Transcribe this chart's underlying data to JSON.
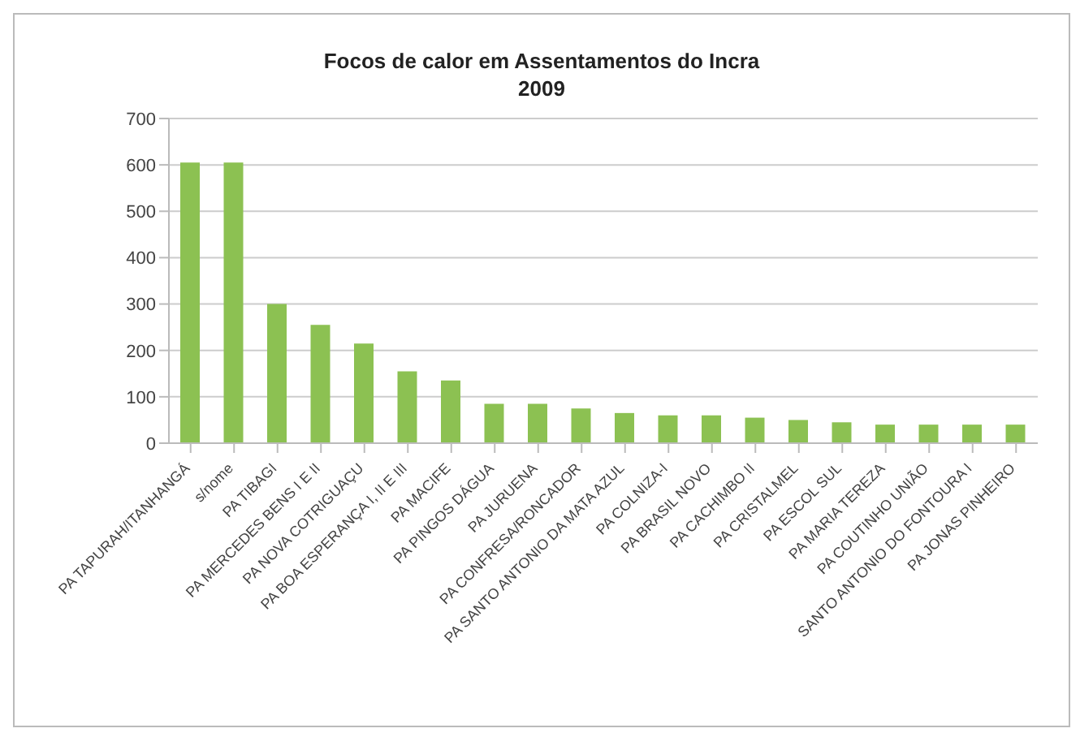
{
  "chart_data": {
    "type": "bar",
    "title": "Focos de calor em Assentamentos do Incra",
    "subtitle": "2009",
    "categories": [
      "PA TAPURAH/ITANHANGÁ",
      "s/nome",
      "PA TIBAGI",
      "PA MERCEDES BENS I E II",
      "PA NOVA COTRIGUAÇU",
      "PA BOA ESPERANÇA I, II E III",
      "PA MACIFE",
      "PA PINGOS DÁGUA",
      "PA JURUENA",
      "PA CONFRESA/RONCADOR",
      "PA SANTO ANTONIO DA MATA AZUL",
      "PA COLNIZA-I",
      "PA BRASIL NOVO",
      "PA CACHIMBO II",
      "PA CRISTALMEL",
      "PA ESCOL SUL",
      "PA MARIA TEREZA",
      "PA COUTINHO UNIÃO",
      "SANTO ANTONIO DO FONTOURA I",
      "PA JONAS PINHEIRO"
    ],
    "values": [
      605,
      605,
      300,
      255,
      215,
      155,
      135,
      85,
      85,
      75,
      65,
      60,
      60,
      55,
      50,
      45,
      40,
      40,
      40,
      40
    ],
    "color": "#8cc152",
    "ylim": [
      0,
      700
    ],
    "yticks": [
      0,
      100,
      200,
      300,
      400,
      500,
      600,
      700
    ],
    "grid": "y"
  }
}
